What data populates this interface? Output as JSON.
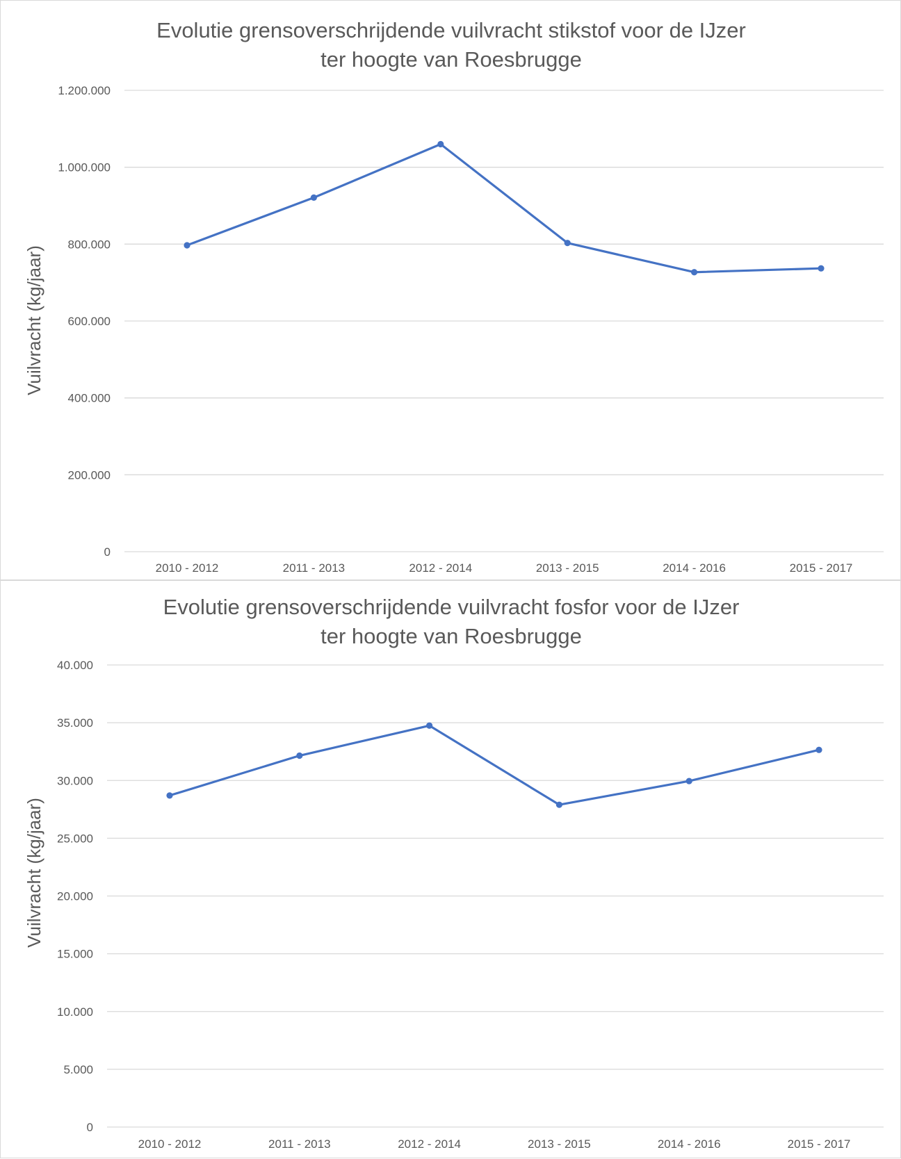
{
  "colors": {
    "line": "#4472c4",
    "grid": "#d9d9d9",
    "text": "#595959"
  },
  "chart_data": [
    {
      "type": "line",
      "title_lines": [
        "Evolutie grensoverschrijdende vuilvracht stikstof voor de IJzer",
        "ter hoogte van Roesbrugge"
      ],
      "ylabel": "Vuilvracht (kg/jaar)",
      "xlabel": "",
      "categories": [
        "2010 - 2012",
        "2011 - 2013",
        "2012 - 2014",
        "2013 - 2015",
        "2014 - 2016",
        "2015 - 2017"
      ],
      "series": [
        {
          "values": [
            797000,
            921000,
            1060000,
            803000,
            727000,
            737000
          ]
        }
      ],
      "ylim": [
        0,
        1200000
      ],
      "yticks": [
        0,
        200000,
        400000,
        600000,
        800000,
        1000000,
        1200000
      ],
      "ytick_labels": [
        "0",
        "200.000",
        "400.000",
        "600.000",
        "800.000",
        "1.000.000",
        "1.200.000"
      ],
      "grid": true,
      "markers": true,
      "legend": "none"
    },
    {
      "type": "line",
      "title_lines": [
        "Evolutie grensoverschrijdende vuilvracht fosfor voor de IJzer",
        "ter hoogte van Roesbrugge"
      ],
      "ylabel": "Vuilvracht (kg/jaar)",
      "xlabel": "",
      "categories": [
        "2010 - 2012",
        "2011 - 2013",
        "2012 - 2014",
        "2013 - 2015",
        "2014 - 2016",
        "2015 - 2017"
      ],
      "series": [
        {
          "values": [
            28700,
            32150,
            34750,
            27900,
            29950,
            32650
          ]
        }
      ],
      "ylim": [
        0,
        40000
      ],
      "yticks": [
        0,
        5000,
        10000,
        15000,
        20000,
        25000,
        30000,
        35000,
        40000
      ],
      "ytick_labels": [
        "0",
        "5.000",
        "10.000",
        "15.000",
        "20.000",
        "25.000",
        "30.000",
        "35.000",
        "40.000"
      ],
      "grid": true,
      "markers": true,
      "legend": "none"
    }
  ]
}
